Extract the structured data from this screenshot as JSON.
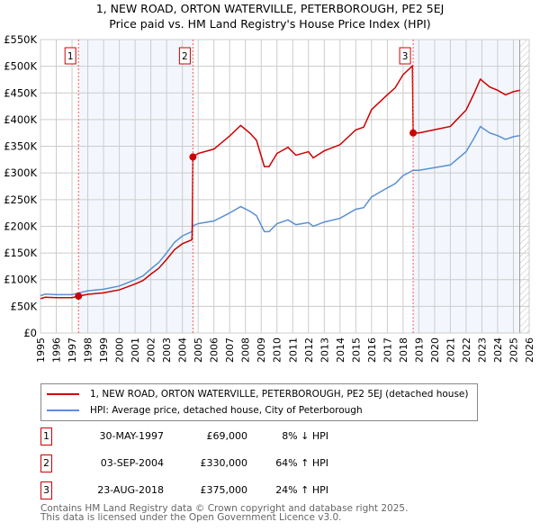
{
  "chart_data": {
    "type": "line",
    "title": "1, NEW ROAD, ORTON WATERVILLE, PETERBOROUGH, PE2 5EJ",
    "subtitle": "Price paid vs. HM Land Registry's House Price Index (HPI)",
    "xlim": [
      1995,
      2026
    ],
    "ylim": [
      0,
      550000
    ],
    "y_ticks": [
      0,
      50000,
      100000,
      150000,
      200000,
      250000,
      300000,
      350000,
      400000,
      450000,
      500000,
      550000
    ],
    "y_tick_labels": [
      "£0",
      "£50K",
      "£100K",
      "£150K",
      "£200K",
      "£250K",
      "£300K",
      "£350K",
      "£400K",
      "£450K",
      "£500K",
      "£550K"
    ],
    "x_ticks": [
      1995,
      1996,
      1997,
      1998,
      1999,
      2000,
      2001,
      2002,
      2003,
      2004,
      2005,
      2006,
      2007,
      2008,
      2009,
      2010,
      2011,
      2012,
      2013,
      2014,
      2015,
      2016,
      2017,
      2018,
      2019,
      2020,
      2021,
      2022,
      2023,
      2024,
      2025,
      2026
    ],
    "hpi_series": {
      "name": "HPI: Average price, detached house, City of Peterborough",
      "color": "#5b8fd4",
      "x": [
        1995,
        1995.3,
        1996,
        1997,
        1997.4,
        1998,
        1999,
        2000,
        2000.5,
        2001,
        2001.5,
        2002,
        2002.5,
        2003,
        2003.5,
        2004,
        2004.6,
        2004.67,
        2005,
        2006,
        2007,
        2007.7,
        2008.3,
        2008.7,
        2009.2,
        2009.5,
        2010,
        2010.7,
        2011.2,
        2012,
        2012.3,
        2013,
        2014,
        2015,
        2015.5,
        2016,
        2017,
        2017.5,
        2018,
        2018.64,
        2019,
        2020,
        2021,
        2022,
        2022.5,
        2022.9,
        2023.5,
        2024,
        2024.5,
        2025,
        2025.4
      ],
      "y": [
        70000,
        73000,
        72000,
        72000,
        75000,
        79000,
        82000,
        88000,
        94000,
        100000,
        107000,
        120000,
        132000,
        150000,
        170000,
        182000,
        190000,
        201000,
        205000,
        210000,
        225000,
        237000,
        228000,
        220000,
        190000,
        190000,
        205000,
        212000,
        203000,
        207000,
        200000,
        208000,
        215000,
        232000,
        235000,
        255000,
        272000,
        280000,
        295000,
        305000,
        305000,
        310000,
        315000,
        340000,
        365000,
        387000,
        375000,
        370000,
        363000,
        368000,
        370000
      ]
    },
    "price_series": {
      "name": "1, NEW ROAD, ORTON WATERVILLE, PETERBOROUGH, PE2 5EJ (detached house)",
      "color": "#cc0000"
    },
    "sales": [
      {
        "n": "1",
        "x": 1997.41,
        "date": "30-MAY-1997",
        "price": 69000,
        "price_label": "£69,000",
        "hpi": "8% ↓ HPI"
      },
      {
        "n": "2",
        "x": 2004.67,
        "date": "03-SEP-2004",
        "price": 330000,
        "price_label": "£330,000",
        "hpi": "64% ↑ HPI"
      },
      {
        "n": "3",
        "x": 2018.64,
        "date": "23-AUG-2018",
        "price": 375000,
        "price_label": "£375,000",
        "hpi": "24% ↑ HPI"
      }
    ],
    "shaded_ranges": [
      [
        1997.41,
        2004.67
      ],
      [
        2018.64,
        2025.4
      ]
    ],
    "forecast_start": 2025.4
  },
  "footer": [
    "Contains HM Land Registry data © Crown copyright and database right 2025.",
    "This data is licensed under the Open Government Licence v3.0."
  ]
}
